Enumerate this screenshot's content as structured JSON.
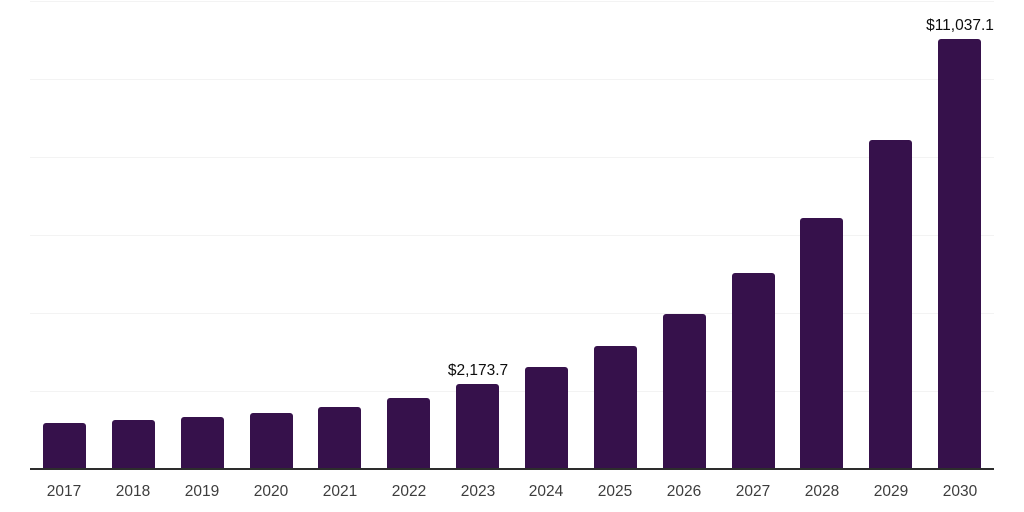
{
  "chart_data": {
    "type": "bar",
    "title": "",
    "xlabel": "",
    "ylabel": "",
    "categories": [
      "2017",
      "2018",
      "2019",
      "2020",
      "2021",
      "2022",
      "2023",
      "2024",
      "2025",
      "2026",
      "2027",
      "2028",
      "2029",
      "2030"
    ],
    "values": [
      1180,
      1255,
      1330,
      1435,
      1590,
      1820,
      2173.7,
      2610,
      3150,
      3970,
      5020,
      6430,
      8430,
      11037.1
    ],
    "data_labels": [
      {
        "category": "2023",
        "text": "$2,173.7"
      },
      {
        "category": "2030",
        "text": "$11,037.1"
      }
    ],
    "ylim": [
      0,
      12000
    ],
    "gridline_step": 2000,
    "grid": "horizontal-only",
    "legend": "none",
    "y_axis_ticks_visible": false,
    "colors": {
      "bar": "#36114B",
      "axis_line": "#2d2d2d",
      "gridline": "#f3f3f3",
      "tick_label": "#3d3d3d",
      "data_label": "#0d0d0d"
    }
  }
}
